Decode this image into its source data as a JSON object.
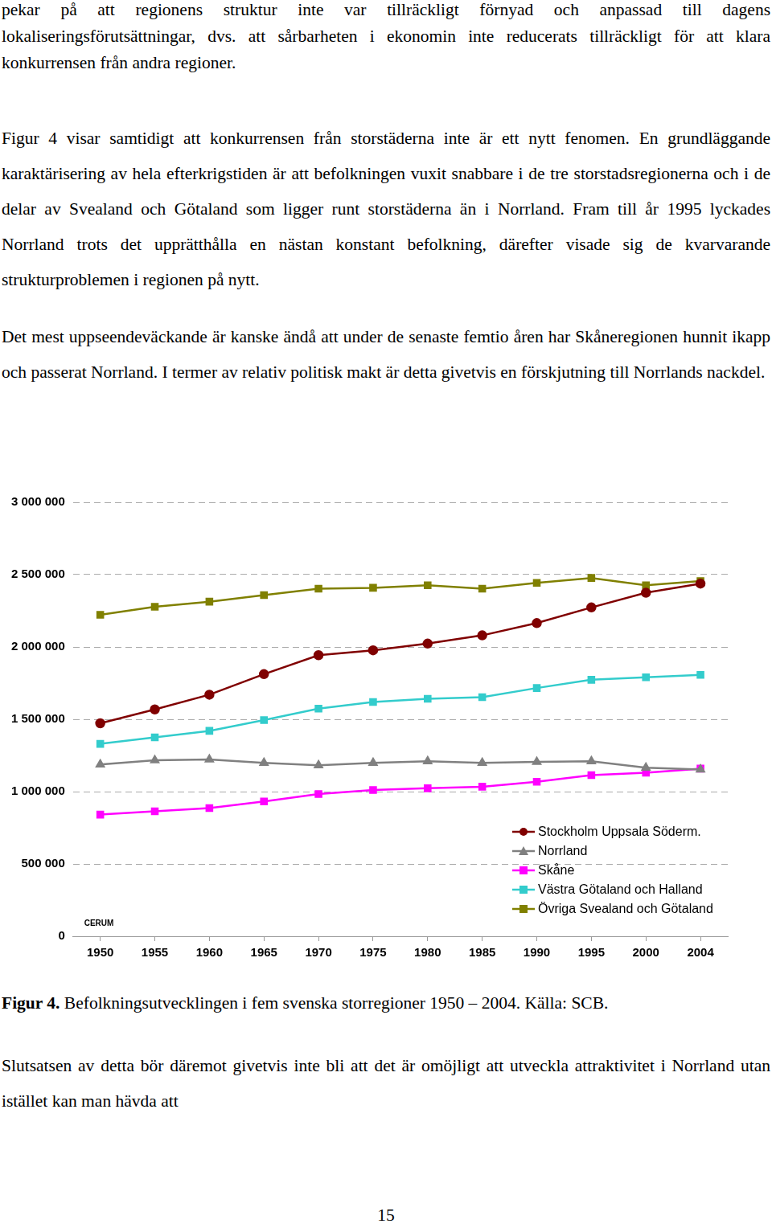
{
  "document": {
    "paragraphs": [
      "pekar på att regionens struktur inte var tillräckligt förnyad och anpassad till dagens lokaliseringsförutsättningar, dvs. att sårbarheten i ekonomin inte reducerats tillräckligt för att klara konkurrensen från andra regioner.",
      "Figur 4 visar samtidigt att konkurrensen från storstäderna inte är ett nytt fenomen. En grundläggande karaktärisering av hela efterkrigstiden är att befolkningen vuxit snabbare i de tre storstadsregionerna och i de delar av Svealand och Götaland som ligger runt storstäderna än i Norrland. Fram till år 1995 lyckades Norrland trots det upprätthålla en nästan konstant befolkning, därefter visade sig de kvarvarande strukturproblemen i regionen på nytt.",
      "Det mest uppseendeväckande är kanske ändå att under de senaste femtio åren har Skåneregionen hunnit ikapp och passerat Norrland. I termer av relativ politisk makt är detta givetvis en förskjutning till Norrlands nackdel.",
      "Slutsatsen av detta bör däremot givetvis inte bli att det är omöjligt att utveckla attraktivitet i Norrland utan istället kan man hävda att"
    ],
    "caption_label": "Figur 4.",
    "caption_text": "Befolkningsutvecklingen i fem svenska storregioner 1950 – 2004. Källa: SCB.",
    "logo_text": "CERUM",
    "page_number": "15"
  },
  "chart_data": {
    "type": "line",
    "categories": [
      "1950",
      "1955",
      "1960",
      "1965",
      "1970",
      "1975",
      "1980",
      "1985",
      "1990",
      "1995",
      "2000",
      "2004"
    ],
    "series": [
      {
        "name": "Stockholm Uppsala Söderm.",
        "color": "#800000",
        "marker": "circle",
        "values": [
          1472000,
          1568000,
          1670000,
          1812000,
          1943000,
          1977000,
          2023000,
          2080000,
          2165000,
          2273000,
          2375000,
          2438000
        ]
      },
      {
        "name": "Norrland",
        "color": "#808080",
        "marker": "triangle",
        "values": [
          1188000,
          1216000,
          1222000,
          1199000,
          1182000,
          1199000,
          1210000,
          1199000,
          1205000,
          1210000,
          1165000,
          1153000
        ]
      },
      {
        "name": "Skåne",
        "color": "#ff00ff",
        "marker": "square",
        "values": [
          841000,
          864000,
          886000,
          932000,
          983000,
          1011000,
          1023000,
          1034000,
          1068000,
          1114000,
          1131000,
          1159000
        ]
      },
      {
        "name": "Västra Götaland och Halland",
        "color": "#33cccc",
        "marker": "square",
        "values": [
          1330000,
          1375000,
          1420000,
          1494000,
          1574000,
          1619000,
          1642000,
          1653000,
          1716000,
          1773000,
          1790000,
          1807000
        ]
      },
      {
        "name": "Övriga Svealand och Götaland",
        "color": "#808000",
        "marker": "square",
        "values": [
          2222000,
          2278000,
          2313000,
          2358000,
          2403000,
          2409000,
          2426000,
          2403000,
          2443000,
          2477000,
          2426000,
          2455000
        ]
      }
    ],
    "ylim": [
      0,
      3000000
    ],
    "yticks": [
      0,
      {
        "value": 500000,
        "label": "500 000"
      },
      {
        "value": 1000000,
        "label": "1 000 000"
      },
      {
        "value": 1500000,
        "label": "1 500 000"
      },
      {
        "value": 2000000,
        "label": "2 000 000"
      },
      {
        "value": 2500000,
        "label": "2 500 000"
      },
      {
        "value": 3000000,
        "label": "3 000 000"
      }
    ],
    "grid": true,
    "legend": "lower right"
  }
}
